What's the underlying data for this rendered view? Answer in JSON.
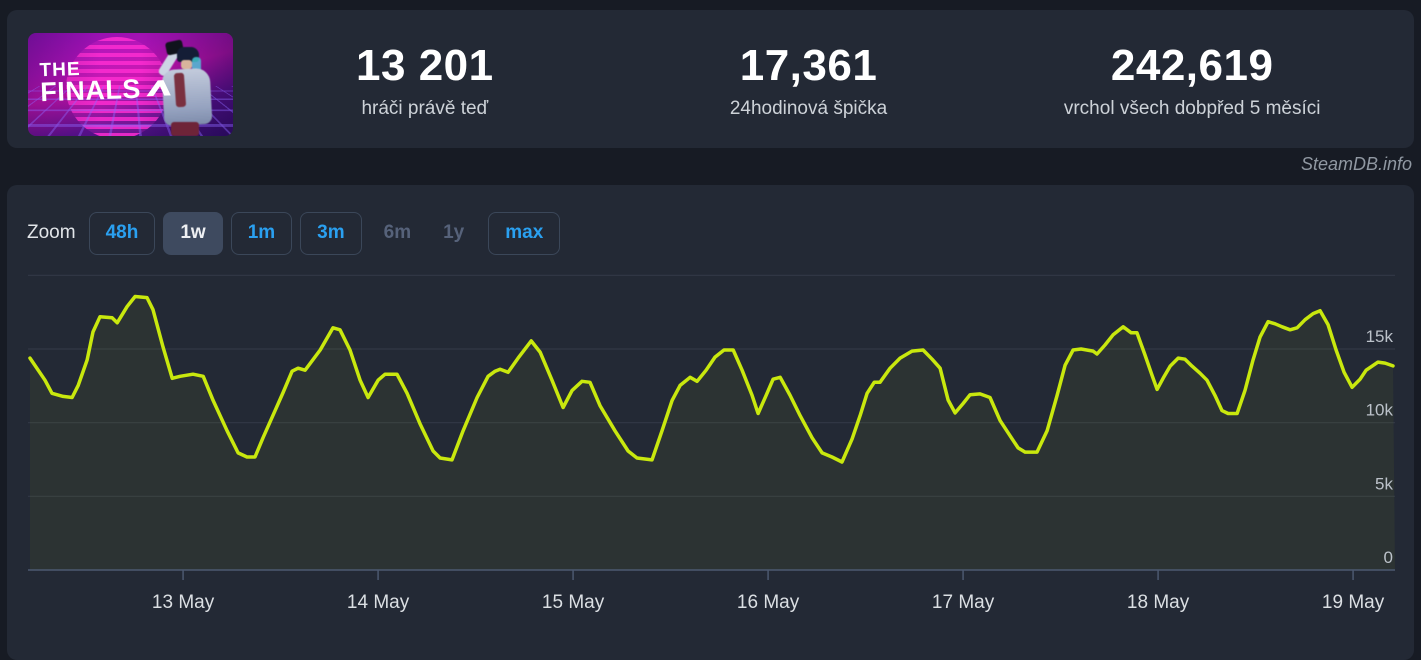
{
  "header": {
    "game_title": "THE FINALS",
    "banner": {
      "line1": "THE",
      "line2": "FINALS"
    },
    "stats": [
      {
        "id": "players-now",
        "value": "13 201",
        "label_parts": [
          "hráči právě teď"
        ]
      },
      {
        "id": "peak-24h",
        "value": "17,361",
        "label_parts": [
          "24hodinová špička"
        ]
      },
      {
        "id": "peak-all-time",
        "value": "242,619",
        "label_parts": [
          "vrchol všech dob",
          "před 5 měsíci"
        ]
      }
    ]
  },
  "watermark": "SteamDB.info",
  "toolbar": {
    "zoom_label": "Zoom",
    "buttons": [
      {
        "label": "48h",
        "state": "enabled"
      },
      {
        "label": "1w",
        "state": "selected"
      },
      {
        "label": "1m",
        "state": "enabled"
      },
      {
        "label": "3m",
        "state": "enabled"
      },
      {
        "label": "6m",
        "state": "disabled"
      },
      {
        "label": "1y",
        "state": "disabled"
      },
      {
        "label": "max",
        "state": "enabled"
      }
    ]
  },
  "colors": {
    "page_bg": "#171b24",
    "card_bg": "#232935",
    "accent_blue": "#2aa0f0",
    "line": "#c9e80e",
    "area_fill": "rgba(201,232,14,0.055)",
    "gridline": "#323946",
    "axis": "#4b5870",
    "y_label": "#bcc2ca",
    "x_label": "#dbdfe3"
  },
  "chart_data": {
    "type": "line",
    "title": "",
    "xlabel": "",
    "ylabel": "players",
    "legend": false,
    "grid": true,
    "x_unit": "day-of-May",
    "x_range": [
      12.215,
      19.215
    ],
    "y_range": [
      0,
      20000
    ],
    "x_ticks": [
      {
        "t": 13,
        "label": "13 May"
      },
      {
        "t": 14,
        "label": "14 May"
      },
      {
        "t": 15,
        "label": "15 May"
      },
      {
        "t": 16,
        "label": "16 May"
      },
      {
        "t": 17,
        "label": "17 May"
      },
      {
        "t": 18,
        "label": "18 May"
      },
      {
        "t": 19,
        "label": "19 May"
      }
    ],
    "y_ticks": [
      {
        "v": 0,
        "label": "0"
      },
      {
        "v": 5000,
        "label": "5k"
      },
      {
        "v": 10000,
        "label": "10k"
      },
      {
        "v": 15000,
        "label": "15k"
      },
      {
        "v": 20000,
        "label": ""
      }
    ],
    "series": [
      {
        "name": "players",
        "points": [
          [
            12.215,
            14380
          ],
          [
            12.292,
            12880
          ],
          [
            12.328,
            11990
          ],
          [
            12.385,
            11780
          ],
          [
            12.431,
            11710
          ],
          [
            12.462,
            12530
          ],
          [
            12.508,
            14250
          ],
          [
            12.538,
            16160
          ],
          [
            12.574,
            17190
          ],
          [
            12.636,
            17120
          ],
          [
            12.662,
            16780
          ],
          [
            12.713,
            17880
          ],
          [
            12.754,
            18560
          ],
          [
            12.815,
            18490
          ],
          [
            12.846,
            17670
          ],
          [
            12.897,
            15140
          ],
          [
            12.944,
            13010
          ],
          [
            12.985,
            13150
          ],
          [
            13.051,
            13290
          ],
          [
            13.103,
            13150
          ],
          [
            13.154,
            11510
          ],
          [
            13.226,
            9450
          ],
          [
            13.282,
            7950
          ],
          [
            13.328,
            7670
          ],
          [
            13.369,
            7670
          ],
          [
            13.41,
            8970
          ],
          [
            13.472,
            10820
          ],
          [
            13.513,
            12050
          ],
          [
            13.559,
            13490
          ],
          [
            13.59,
            13700
          ],
          [
            13.626,
            13560
          ],
          [
            13.703,
            14930
          ],
          [
            13.769,
            16440
          ],
          [
            13.805,
            16300
          ],
          [
            13.856,
            14930
          ],
          [
            13.908,
            12880
          ],
          [
            13.949,
            11710
          ],
          [
            14.0,
            12880
          ],
          [
            14.036,
            13290
          ],
          [
            14.097,
            13290
          ],
          [
            14.149,
            11990
          ],
          [
            14.215,
            9930
          ],
          [
            14.282,
            8080
          ],
          [
            14.318,
            7600
          ],
          [
            14.379,
            7470
          ],
          [
            14.436,
            9450
          ],
          [
            14.508,
            11710
          ],
          [
            14.564,
            13150
          ],
          [
            14.6,
            13490
          ],
          [
            14.626,
            13630
          ],
          [
            14.667,
            13420
          ],
          [
            14.718,
            14380
          ],
          [
            14.785,
            15550
          ],
          [
            14.831,
            14790
          ],
          [
            14.892,
            12880
          ],
          [
            14.949,
            11030
          ],
          [
            14.995,
            12190
          ],
          [
            15.046,
            12810
          ],
          [
            15.087,
            12740
          ],
          [
            15.138,
            11160
          ],
          [
            15.215,
            9450
          ],
          [
            15.282,
            8080
          ],
          [
            15.328,
            7600
          ],
          [
            15.405,
            7470
          ],
          [
            15.456,
            9450
          ],
          [
            15.508,
            11510
          ],
          [
            15.549,
            12530
          ],
          [
            15.6,
            13080
          ],
          [
            15.636,
            12810
          ],
          [
            15.682,
            13560
          ],
          [
            15.728,
            14450
          ],
          [
            15.774,
            14930
          ],
          [
            15.821,
            14930
          ],
          [
            15.867,
            13560
          ],
          [
            15.918,
            11850
          ],
          [
            15.949,
            10620
          ],
          [
            15.99,
            11850
          ],
          [
            16.026,
            12950
          ],
          [
            16.062,
            13080
          ],
          [
            16.113,
            11850
          ],
          [
            16.164,
            10480
          ],
          [
            16.226,
            8970
          ],
          [
            16.277,
            7950
          ],
          [
            16.328,
            7670
          ],
          [
            16.379,
            7330
          ],
          [
            16.431,
            8900
          ],
          [
            16.472,
            10480
          ],
          [
            16.508,
            11990
          ],
          [
            16.544,
            12740
          ],
          [
            16.574,
            12740
          ],
          [
            16.626,
            13700
          ],
          [
            16.677,
            14380
          ],
          [
            16.738,
            14860
          ],
          [
            16.795,
            14930
          ],
          [
            16.841,
            14310
          ],
          [
            16.882,
            13700
          ],
          [
            16.923,
            11540
          ],
          [
            16.959,
            10660
          ],
          [
            17.0,
            11300
          ],
          [
            17.036,
            11900
          ],
          [
            17.087,
            11950
          ],
          [
            17.138,
            11710
          ],
          [
            17.19,
            10140
          ],
          [
            17.241,
            9110
          ],
          [
            17.282,
            8290
          ],
          [
            17.318,
            8000
          ],
          [
            17.379,
            8000
          ],
          [
            17.431,
            9450
          ],
          [
            17.482,
            11850
          ],
          [
            17.523,
            13900
          ],
          [
            17.564,
            14930
          ],
          [
            17.605,
            15000
          ],
          [
            17.667,
            14860
          ],
          [
            17.687,
            14660
          ],
          [
            17.728,
            15270
          ],
          [
            17.769,
            15960
          ],
          [
            17.821,
            16510
          ],
          [
            17.862,
            16100
          ],
          [
            17.892,
            16100
          ],
          [
            17.933,
            14590
          ],
          [
            17.969,
            13220
          ],
          [
            17.995,
            12260
          ],
          [
            18.026,
            13010
          ],
          [
            18.062,
            13840
          ],
          [
            18.103,
            14380
          ],
          [
            18.138,
            14310
          ],
          [
            18.174,
            13840
          ],
          [
            18.215,
            13360
          ],
          [
            18.251,
            12880
          ],
          [
            18.292,
            11850
          ],
          [
            18.328,
            10820
          ],
          [
            18.359,
            10620
          ],
          [
            18.405,
            10620
          ],
          [
            18.446,
            12190
          ],
          [
            18.487,
            14250
          ],
          [
            18.523,
            15820
          ],
          [
            18.564,
            16850
          ],
          [
            18.6,
            16710
          ],
          [
            18.636,
            16510
          ],
          [
            18.677,
            16300
          ],
          [
            18.713,
            16440
          ],
          [
            18.754,
            16990
          ],
          [
            18.795,
            17400
          ],
          [
            18.831,
            17600
          ],
          [
            18.872,
            16640
          ],
          [
            18.913,
            14930
          ],
          [
            18.954,
            13420
          ],
          [
            18.995,
            12400
          ],
          [
            19.036,
            12950
          ],
          [
            19.067,
            13560
          ],
          [
            19.097,
            13830
          ],
          [
            19.128,
            14110
          ],
          [
            19.164,
            14040
          ],
          [
            19.205,
            13850
          ]
        ]
      }
    ]
  }
}
